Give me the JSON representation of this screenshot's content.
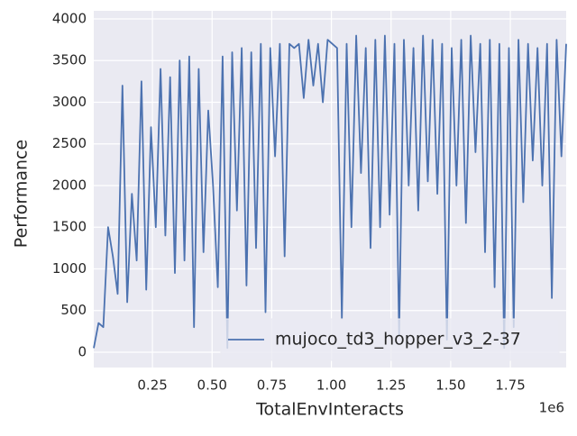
{
  "chart_data": {
    "type": "line",
    "x_label": "TotalEnvInteracts",
    "y_label": "Performance",
    "x_offset_label": "1e6",
    "x": [
      0.004,
      0.024,
      0.044,
      0.064,
      0.084,
      0.104,
      0.124,
      0.144,
      0.164,
      0.184,
      0.204,
      0.224,
      0.244,
      0.264,
      0.284,
      0.304,
      0.324,
      0.344,
      0.364,
      0.384,
      0.404,
      0.424,
      0.444,
      0.464,
      0.484,
      0.504,
      0.524,
      0.544,
      0.564,
      0.584,
      0.604,
      0.624,
      0.644,
      0.664,
      0.684,
      0.704,
      0.724,
      0.744,
      0.764,
      0.784,
      0.804,
      0.824,
      0.844,
      0.864,
      0.884,
      0.904,
      0.924,
      0.944,
      0.964,
      0.984,
      1.004,
      1.024,
      1.044,
      1.064,
      1.084,
      1.104,
      1.124,
      1.144,
      1.164,
      1.184,
      1.204,
      1.224,
      1.244,
      1.264,
      1.284,
      1.304,
      1.324,
      1.344,
      1.364,
      1.384,
      1.404,
      1.424,
      1.444,
      1.464,
      1.484,
      1.504,
      1.524,
      1.544,
      1.564,
      1.584,
      1.604,
      1.624,
      1.644,
      1.664,
      1.684,
      1.704,
      1.724,
      1.744,
      1.764,
      1.784,
      1.804,
      1.824,
      1.844,
      1.864,
      1.884,
      1.904,
      1.924,
      1.944,
      1.964,
      1.984
    ],
    "series": [
      {
        "name": "mujoco_td3_hopper_v3_2-37",
        "color": "#4c72b0",
        "values": [
          50,
          350,
          300,
          1500,
          1150,
          700,
          3200,
          600,
          1900,
          1100,
          3250,
          750,
          2700,
          1500,
          3400,
          1400,
          3300,
          950,
          3500,
          1100,
          3550,
          300,
          3400,
          1200,
          2900,
          2000,
          780,
          3550,
          50,
          3600,
          1700,
          3650,
          800,
          3600,
          1250,
          3700,
          480,
          3650,
          2350,
          3700,
          1150,
          3700,
          3650,
          3700,
          3050,
          3750,
          3200,
          3700,
          3000,
          3750,
          3700,
          3650,
          400,
          3700,
          1500,
          3800,
          2150,
          3650,
          1250,
          3750,
          1500,
          3800,
          1650,
          3700,
          200,
          3750,
          2000,
          3650,
          1700,
          3800,
          2050,
          3750,
          1900,
          3700,
          150,
          3650,
          2000,
          3750,
          1550,
          3800,
          2400,
          3700,
          1200,
          3750,
          780,
          3700,
          50,
          3650,
          300,
          3750,
          1800,
          3700,
          2300,
          3650,
          2000,
          3700,
          650,
          3750,
          2350,
          3700
        ]
      }
    ],
    "xlim": [
      0.004,
      1.984
    ],
    "ylim": [
      -184,
      4097
    ],
    "xticks": [
      0.25,
      {
        "value": 0.5,
        "label": "0.50"
      },
      0.75,
      {
        "value": 1.0,
        "label": "1.00"
      },
      1.25,
      {
        "value": 1.5,
        "label": "1.50"
      },
      1.75
    ],
    "yticks": [
      0,
      500,
      1000,
      1500,
      2000,
      2500,
      3000,
      3500,
      4000
    ],
    "grid": true,
    "legend": "lower right"
  }
}
